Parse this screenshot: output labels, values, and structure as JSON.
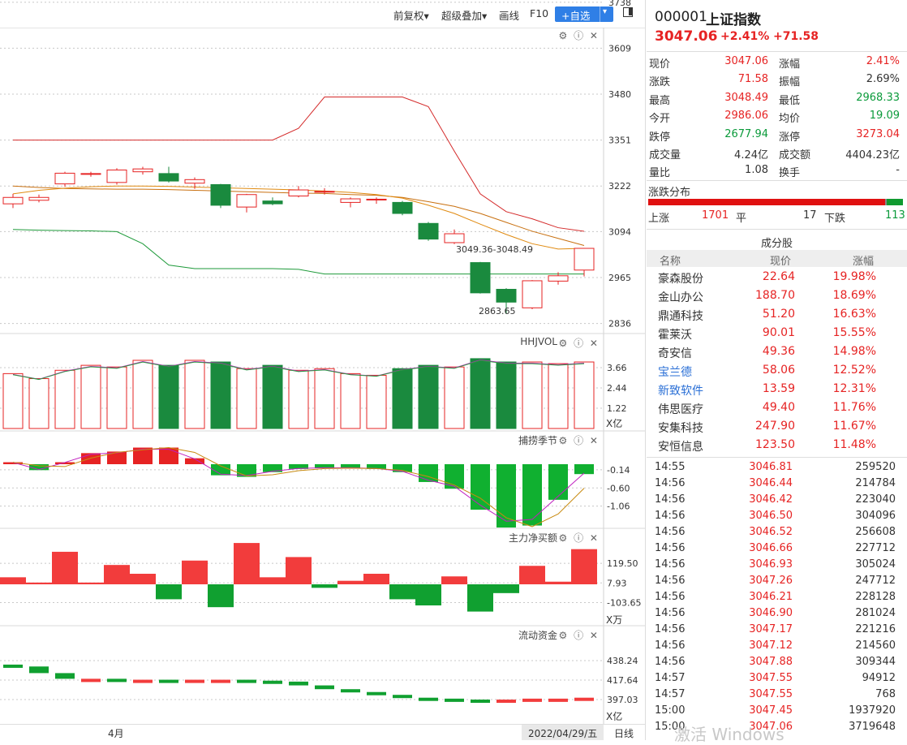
{
  "toolbar": {
    "items": [
      "前复权▾",
      "超级叠加▾",
      "画线",
      "F10"
    ],
    "add_button": "+自选",
    "add_dropdown": "▾"
  },
  "main_chart": {
    "y_ticks": [
      "3738",
      "3609",
      "3480",
      "3351",
      "3222",
      "3094",
      "2965",
      "2836"
    ],
    "annotation_high": "3049.36-3048.49",
    "annotation_low": "2863.65",
    "candles": [
      {
        "o": 3172,
        "c": 3190,
        "h": 3200,
        "l": 3160
      },
      {
        "o": 3182,
        "c": 3190,
        "h": 3198,
        "l": 3176
      },
      {
        "o": 3228,
        "c": 3258,
        "h": 3262,
        "l": 3220
      },
      {
        "o": 3255,
        "c": 3257,
        "h": 3262,
        "l": 3248
      },
      {
        "o": 3232,
        "c": 3267,
        "h": 3272,
        "l": 3226
      },
      {
        "o": 3262,
        "c": 3270,
        "h": 3276,
        "l": 3254
      },
      {
        "o": 3257,
        "c": 3236,
        "h": 3276,
        "l": 3232
      },
      {
        "o": 3230,
        "c": 3240,
        "h": 3246,
        "l": 3214
      },
      {
        "o": 3226,
        "c": 3168,
        "h": 3228,
        "l": 3160
      },
      {
        "o": 3163,
        "c": 3198,
        "h": 3200,
        "l": 3148
      },
      {
        "o": 3180,
        "c": 3172,
        "h": 3190,
        "l": 3168
      },
      {
        "o": 3194,
        "c": 3211,
        "h": 3222,
        "l": 3190
      },
      {
        "o": 3205,
        "c": 3207,
        "h": 3216,
        "l": 3198
      },
      {
        "o": 3176,
        "c": 3186,
        "h": 3190,
        "l": 3162
      },
      {
        "o": 3184,
        "c": 3185,
        "h": 3190,
        "l": 3172
      },
      {
        "o": 3176,
        "c": 3145,
        "h": 3180,
        "l": 3140
      },
      {
        "o": 3117,
        "c": 3073,
        "h": 3121,
        "l": 3068
      },
      {
        "o": 3063,
        "c": 3088,
        "h": 3100,
        "l": 3059
      },
      {
        "o": 3007,
        "c": 2922,
        "h": 3009,
        "l": 2920
      },
      {
        "o": 2932,
        "c": 2896,
        "h": 2935,
        "l": 2863
      },
      {
        "o": 2880,
        "c": 2956,
        "h": 2958,
        "l": 2876
      },
      {
        "o": 2955,
        "c": 2970,
        "h": 2980,
        "l": 2945
      },
      {
        "o": 2986,
        "c": 3047,
        "h": 3048,
        "l": 2968
      }
    ],
    "boll_upper": [
      3351,
      3351,
      3351,
      3351,
      3351,
      3351,
      3351,
      3351,
      3351,
      3351,
      3351,
      3384,
      3472,
      3472,
      3472,
      3472,
      3445,
      3320,
      3200,
      3150,
      3130,
      3105,
      3095
    ],
    "boll_mid": [
      3222,
      3218,
      3215,
      3214,
      3213,
      3213,
      3212,
      3210,
      3208,
      3206,
      3204,
      3202,
      3201,
      3198,
      3196,
      3190,
      3178,
      3165,
      3145,
      3120,
      3095,
      3075,
      3055
    ],
    "boll_lower": [
      3100,
      3098,
      3097,
      3096,
      3094,
      3060,
      3000,
      2990,
      2990,
      2990,
      2990,
      2988,
      2975,
      2975,
      2975,
      2975,
      2975,
      2975,
      2975,
      2975,
      2975,
      2975,
      2975
    ],
    "ma": [
      3200,
      3210,
      3216,
      3220,
      3222,
      3222,
      3221,
      3219,
      3217,
      3215,
      3213,
      3211,
      3208,
      3204,
      3198,
      3188,
      3168,
      3145,
      3115,
      3086,
      3060,
      3045,
      3047
    ]
  },
  "vol_panel": {
    "title": "HHJVOL",
    "y_ticks": [
      "3.66",
      "2.44",
      "1.22"
    ],
    "unit": "X亿",
    "values": [
      3.3,
      3.0,
      3.5,
      3.8,
      3.7,
      4.1,
      3.8,
      4.1,
      4.0,
      3.6,
      3.8,
      3.5,
      3.6,
      3.3,
      3.2,
      3.6,
      3.8,
      3.7,
      4.2,
      4.0,
      4.0,
      3.9,
      4.0
    ]
  },
  "cycle_panel": {
    "title": "捕捞季节",
    "y_ticks": [
      "-0.14",
      "-0.60",
      "-1.06"
    ],
    "values": [
      0.05,
      -0.15,
      0.05,
      0.28,
      0.32,
      0.42,
      0.42,
      0.15,
      -0.28,
      -0.32,
      -0.2,
      -0.12,
      -0.1,
      -0.1,
      -0.12,
      -0.2,
      -0.45,
      -0.62,
      -1.15,
      -1.6,
      -1.55,
      -0.9,
      -0.25
    ]
  },
  "mainforce_panel": {
    "title": "主力净买额",
    "y_ticks": [
      "119.50",
      "7.93",
      "-103.65"
    ],
    "unit": "X万",
    "values": [
      40,
      10,
      185,
      10,
      110,
      60,
      -85,
      135,
      -130,
      235,
      40,
      155,
      -20,
      20,
      60,
      -85,
      -120,
      45,
      -155,
      -50,
      105,
      15,
      200
    ]
  },
  "flow_panel": {
    "title": "流动资金",
    "y_ticks": [
      "438.24",
      "417.64",
      "397.03"
    ],
    "unit": "X亿",
    "values": [
      432,
      425,
      419,
      419,
      418,
      418,
      417,
      418,
      418,
      417,
      416,
      412,
      408,
      405,
      402,
      399,
      398,
      397,
      396,
      397,
      398,
      398,
      399
    ]
  },
  "x_axis": {
    "month_label": "4月",
    "date_label": "2022/04/29/五",
    "period_label": "日线"
  },
  "quote": {
    "code": "000001",
    "name": "上证指数",
    "price": "3047.06",
    "pct": "+2.41%",
    "change": "+71.58",
    "rows": [
      [
        {
          "l": "现价",
          "v": "3047.06",
          "c": "red"
        },
        {
          "l": "涨幅",
          "v": "2.41%",
          "c": "red"
        }
      ],
      [
        {
          "l": "涨跌",
          "v": "71.58",
          "c": "red"
        },
        {
          "l": "振幅",
          "v": "2.69%",
          "c": "dark"
        }
      ],
      [
        {
          "l": "最高",
          "v": "3048.49",
          "c": "red"
        },
        {
          "l": "最低",
          "v": "2968.33",
          "c": "green"
        }
      ],
      [
        {
          "l": "今开",
          "v": "2986.06",
          "c": "red"
        },
        {
          "l": "均价",
          "v": "19.09",
          "c": "green"
        }
      ],
      [
        {
          "l": "跌停",
          "v": "2677.94",
          "c": "green"
        },
        {
          "l": "涨停",
          "v": "3273.04",
          "c": "red"
        }
      ],
      [
        {
          "l": "成交量",
          "v": "4.24亿",
          "c": "dark"
        },
        {
          "l": "成交额",
          "v": "4404.23亿",
          "c": "dark"
        }
      ],
      [
        {
          "l": "量比",
          "v": "1.08",
          "c": "dark"
        },
        {
          "l": "换手",
          "v": "-",
          "c": "dark"
        }
      ]
    ]
  },
  "distribution": {
    "title": "涨跌分布",
    "up_label": "上涨",
    "up_count": "1701",
    "flat_label": "平",
    "flat_count": "17",
    "down_label": "下跌",
    "down_count": "113"
  },
  "constituents": {
    "title": "成分股",
    "headers": [
      "名称",
      "现价",
      "涨幅"
    ],
    "rows": [
      {
        "name": "豪森股份",
        "price": "22.64",
        "pct": "19.98%",
        "nc": "dark"
      },
      {
        "name": "金山办公",
        "price": "188.70",
        "pct": "18.69%",
        "nc": "dark"
      },
      {
        "name": "鼎通科技",
        "price": "51.20",
        "pct": "16.63%",
        "nc": "dark"
      },
      {
        "name": "霍莱沃",
        "price": "90.01",
        "pct": "15.55%",
        "nc": "dark"
      },
      {
        "name": "奇安信",
        "price": "49.36",
        "pct": "14.98%",
        "nc": "dark"
      },
      {
        "name": "宝兰德",
        "price": "58.06",
        "pct": "12.52%",
        "nc": "blue"
      },
      {
        "name": "新致软件",
        "price": "13.59",
        "pct": "12.31%",
        "nc": "blue"
      },
      {
        "name": "伟思医疗",
        "price": "49.40",
        "pct": "11.76%",
        "nc": "dark"
      },
      {
        "name": "安集科技",
        "price": "247.90",
        "pct": "11.67%",
        "nc": "dark"
      },
      {
        "name": "安恒信息",
        "price": "123.50",
        "pct": "11.48%",
        "nc": "dark"
      }
    ]
  },
  "ticks": [
    {
      "t": "14:55",
      "p": "3046.81",
      "v": "259520"
    },
    {
      "t": "14:56",
      "p": "3046.44",
      "v": "214784"
    },
    {
      "t": "14:56",
      "p": "3046.42",
      "v": "223040"
    },
    {
      "t": "14:56",
      "p": "3046.50",
      "v": "304096"
    },
    {
      "t": "14:56",
      "p": "3046.52",
      "v": "256608"
    },
    {
      "t": "14:56",
      "p": "3046.66",
      "v": "227712"
    },
    {
      "t": "14:56",
      "p": "3046.93",
      "v": "305024"
    },
    {
      "t": "14:56",
      "p": "3047.26",
      "v": "247712"
    },
    {
      "t": "14:56",
      "p": "3046.21",
      "v": "228128"
    },
    {
      "t": "14:56",
      "p": "3046.90",
      "v": "281024"
    },
    {
      "t": "14:56",
      "p": "3047.17",
      "v": "221216"
    },
    {
      "t": "14:56",
      "p": "3047.12",
      "v": "214560"
    },
    {
      "t": "14:56",
      "p": "3047.88",
      "v": "309344"
    },
    {
      "t": "14:57",
      "p": "3047.55",
      "v": "94912"
    },
    {
      "t": "14:57",
      "p": "3047.55",
      "v": "768"
    },
    {
      "t": "15:00",
      "p": "3047.45",
      "v": "1937920"
    },
    {
      "t": "15:00",
      "p": "3047.06",
      "v": "3719648"
    }
  ],
  "watermark": "激活 Windows",
  "colors": {
    "up": "#e62323",
    "down": "#1a8a3e",
    "accent": "#2f7fe6"
  }
}
